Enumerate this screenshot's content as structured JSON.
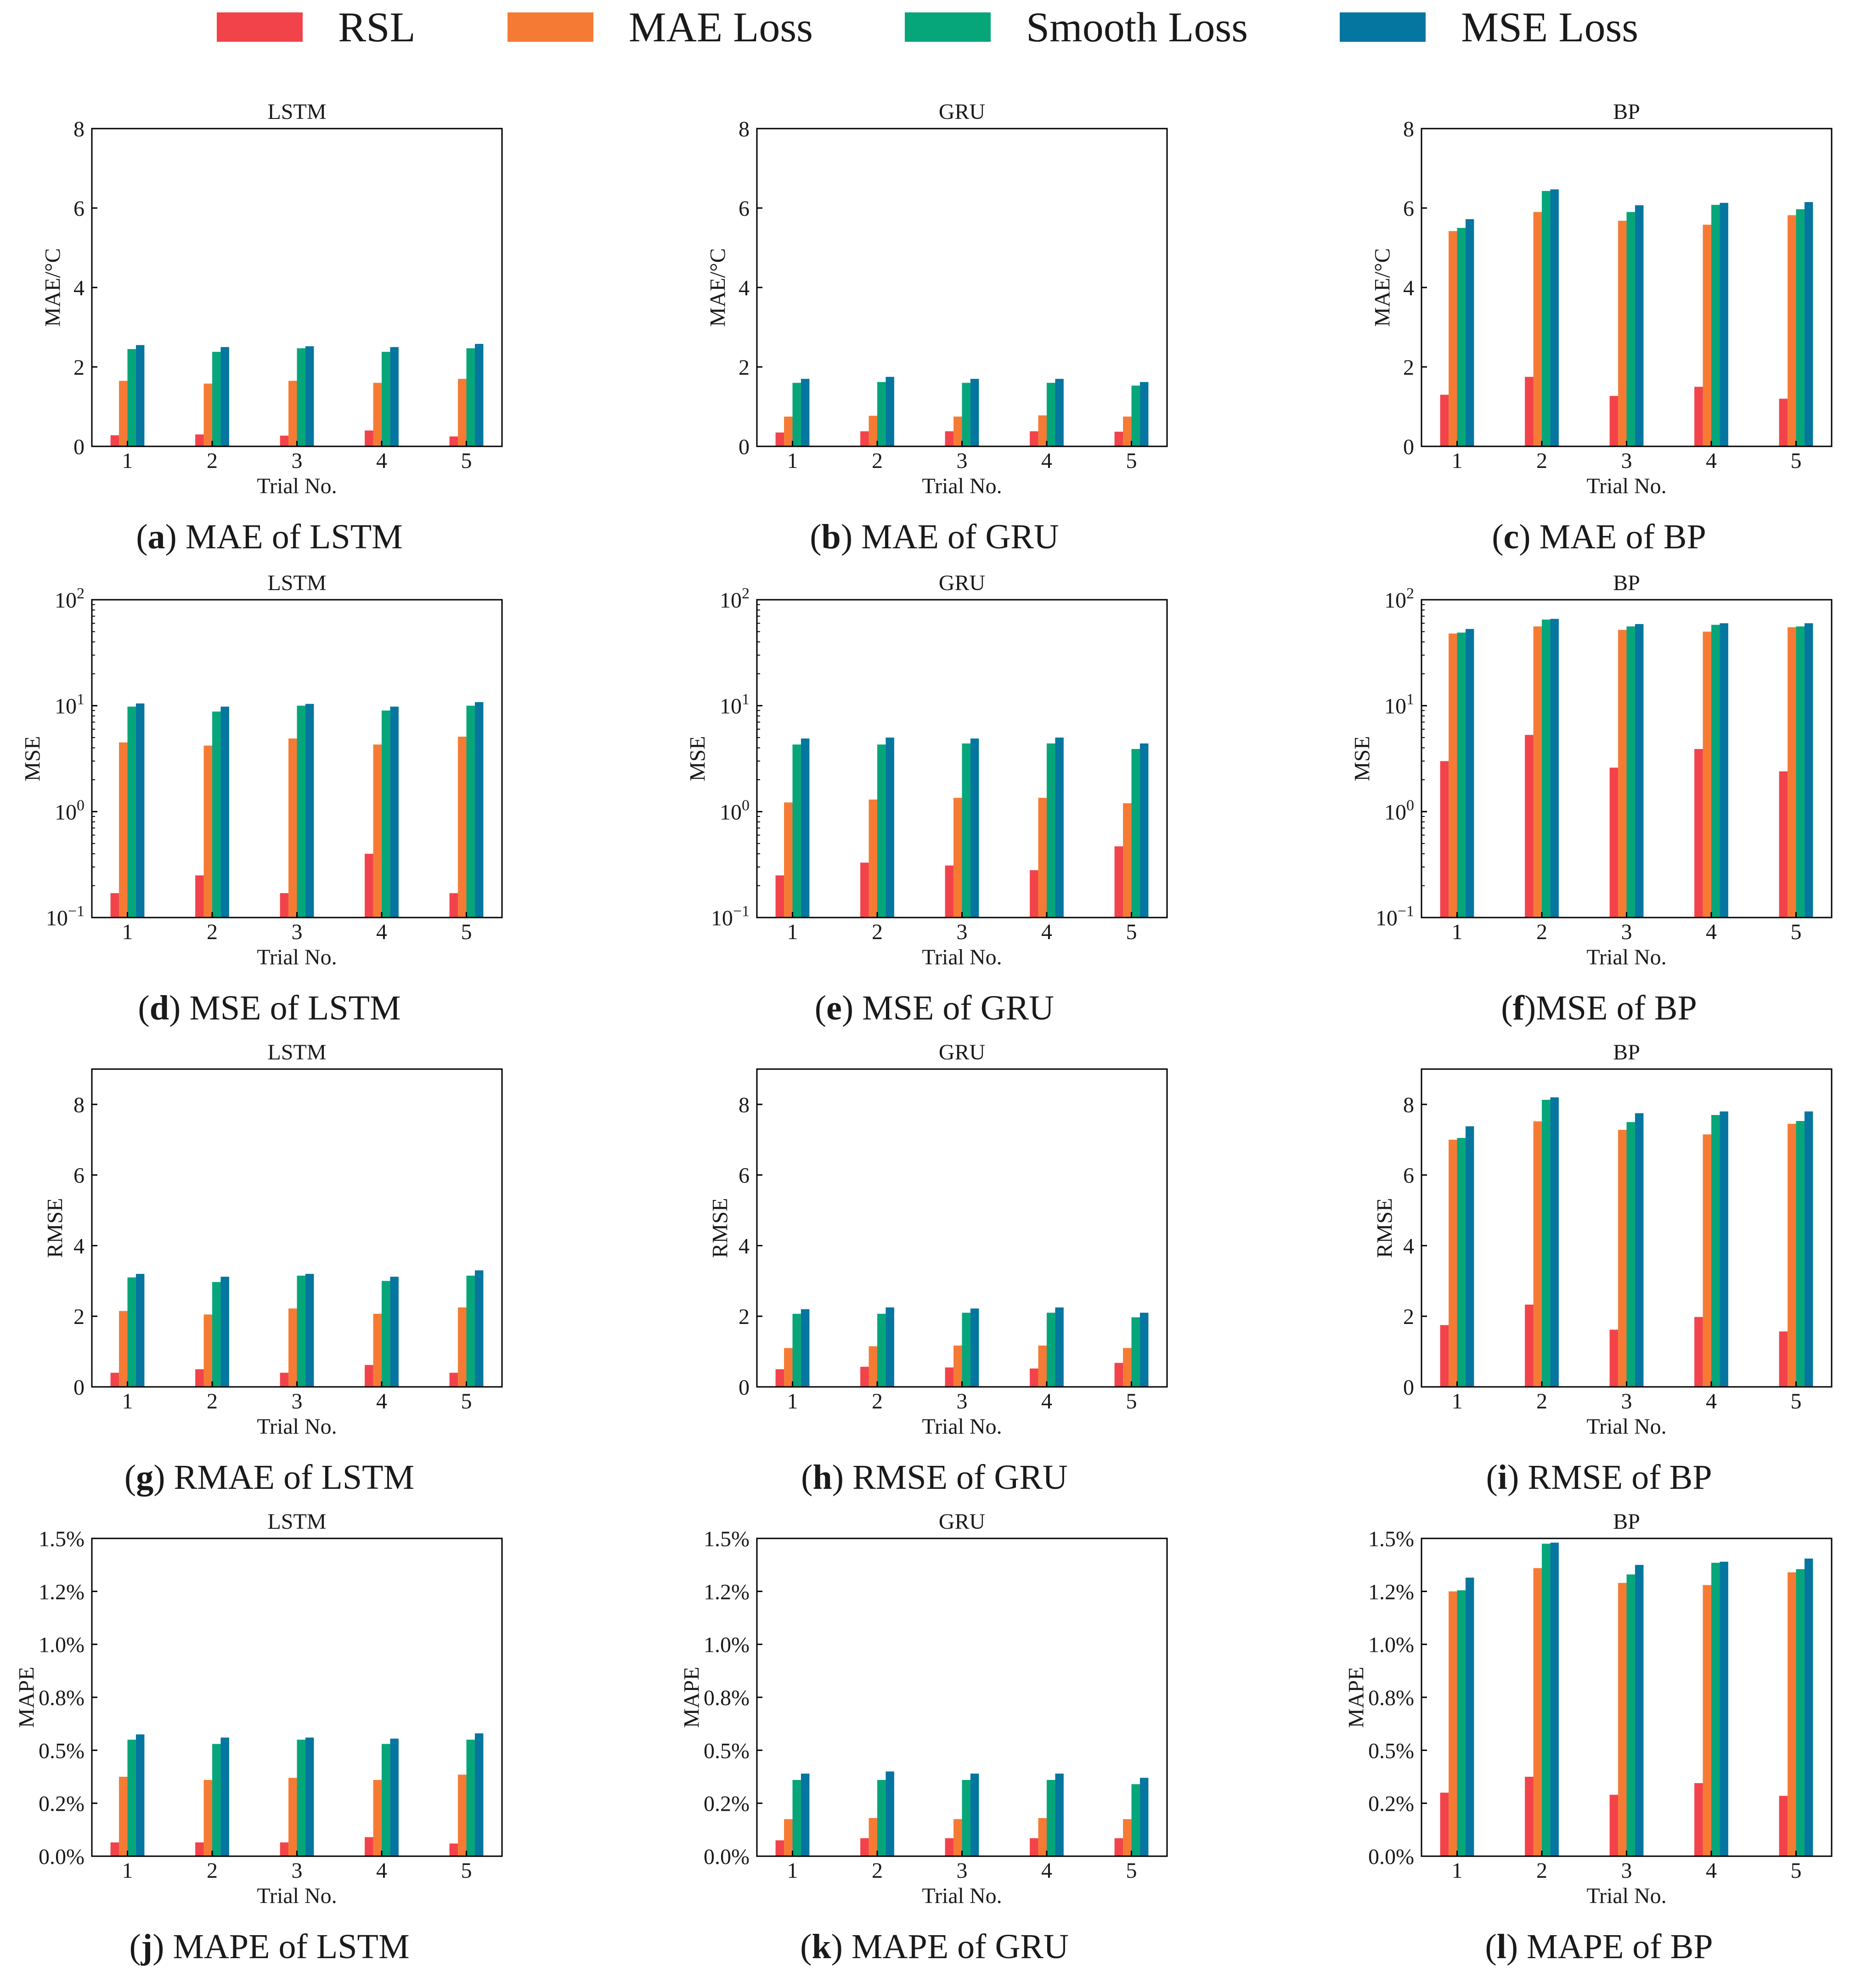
{
  "legend": {
    "items": [
      {
        "label": "RSL",
        "color": "#F2434B"
      },
      {
        "label": "MAE Loss",
        "color": "#F57B35"
      },
      {
        "label": "Smooth Loss",
        "color": "#06A67A"
      },
      {
        "label": "MSE Loss",
        "color": "#05769F"
      }
    ]
  },
  "chart_data": [
    {
      "type": "bar",
      "title": "LSTM",
      "xlabel": "Trial No.",
      "ylabel": "MAE/°C",
      "categories": [
        "1",
        "2",
        "3",
        "4",
        "5"
      ],
      "series": [
        {
          "name": "RSL",
          "values": [
            0.28,
            0.3,
            0.27,
            0.4,
            0.25
          ]
        },
        {
          "name": "MAE Loss",
          "values": [
            1.65,
            1.58,
            1.65,
            1.6,
            1.7
          ]
        },
        {
          "name": "Smooth Loss",
          "values": [
            2.45,
            2.38,
            2.47,
            2.38,
            2.47
          ]
        },
        {
          "name": "MSE Loss",
          "values": [
            2.55,
            2.5,
            2.52,
            2.5,
            2.58
          ]
        }
      ],
      "yscale": "linear",
      "ylim": [
        0,
        8
      ],
      "yticks": [
        0,
        2,
        4,
        6,
        8
      ],
      "ytick_labels": [
        "0",
        "2",
        "4",
        "6",
        "8"
      ],
      "caption": {
        "letter": "a",
        "text": " MAE of LSTM"
      }
    },
    {
      "type": "bar",
      "title": "GRU",
      "xlabel": "Trial No.",
      "ylabel": "MAE/°C",
      "categories": [
        "1",
        "2",
        "3",
        "4",
        "5"
      ],
      "series": [
        {
          "name": "RSL",
          "values": [
            0.35,
            0.38,
            0.38,
            0.38,
            0.37
          ]
        },
        {
          "name": "MAE Loss",
          "values": [
            0.75,
            0.77,
            0.75,
            0.78,
            0.75
          ]
        },
        {
          "name": "Smooth Loss",
          "values": [
            1.6,
            1.62,
            1.6,
            1.6,
            1.53
          ]
        },
        {
          "name": "MSE Loss",
          "values": [
            1.7,
            1.75,
            1.7,
            1.7,
            1.62
          ]
        }
      ],
      "yscale": "linear",
      "ylim": [
        0,
        8
      ],
      "yticks": [
        0,
        2,
        4,
        6,
        8
      ],
      "ytick_labels": [
        "0",
        "2",
        "4",
        "6",
        "8"
      ],
      "caption": {
        "letter": "b",
        "text": " MAE of GRU"
      }
    },
    {
      "type": "bar",
      "title": "BP",
      "xlabel": "Trial No.",
      "ylabel": "MAE/°C",
      "categories": [
        "1",
        "2",
        "3",
        "4",
        "5"
      ],
      "series": [
        {
          "name": "RSL",
          "values": [
            1.3,
            1.75,
            1.27,
            1.5,
            1.2
          ]
        },
        {
          "name": "MAE Loss",
          "values": [
            5.42,
            5.9,
            5.68,
            5.58,
            5.82
          ]
        },
        {
          "name": "Smooth Loss",
          "values": [
            5.5,
            6.43,
            5.9,
            6.08,
            5.97
          ]
        },
        {
          "name": "MSE Loss",
          "values": [
            5.72,
            6.47,
            6.07,
            6.13,
            6.15
          ]
        }
      ],
      "yscale": "linear",
      "ylim": [
        0,
        8
      ],
      "yticks": [
        0,
        2,
        4,
        6,
        8
      ],
      "ytick_labels": [
        "0",
        "2",
        "4",
        "6",
        "8"
      ],
      "caption": {
        "letter": "c",
        "text": " MAE of BP"
      }
    },
    {
      "type": "bar",
      "title": "LSTM",
      "xlabel": "Trial No.",
      "ylabel": "MSE",
      "categories": [
        "1",
        "2",
        "3",
        "4",
        "5"
      ],
      "series": [
        {
          "name": "RSL",
          "values": [
            0.17,
            0.25,
            0.17,
            0.4,
            0.17
          ]
        },
        {
          "name": "MAE Loss",
          "values": [
            4.5,
            4.2,
            4.9,
            4.3,
            5.1
          ]
        },
        {
          "name": "Smooth Loss",
          "values": [
            9.8,
            8.8,
            10.0,
            9.0,
            10.0
          ]
        },
        {
          "name": "MSE Loss",
          "values": [
            10.5,
            9.8,
            10.4,
            9.8,
            10.8
          ]
        }
      ],
      "yscale": "log",
      "ylim": [
        0.1,
        100
      ],
      "yticks": [
        0.1,
        1,
        10,
        100
      ],
      "ytick_labels": [
        {
          "base": "10",
          "exp": "−1"
        },
        {
          "base": "10",
          "exp": "0"
        },
        {
          "base": "10",
          "exp": "1"
        },
        {
          "base": "10",
          "exp": "2"
        }
      ],
      "caption": {
        "letter": "d",
        "text": " MSE of LSTM"
      }
    },
    {
      "type": "bar",
      "title": "GRU",
      "xlabel": "Trial No.",
      "ylabel": "MSE",
      "categories": [
        "1",
        "2",
        "3",
        "4",
        "5"
      ],
      "series": [
        {
          "name": "RSL",
          "values": [
            0.25,
            0.33,
            0.31,
            0.28,
            0.47
          ]
        },
        {
          "name": "MAE Loss",
          "values": [
            1.22,
            1.3,
            1.35,
            1.35,
            1.2
          ]
        },
        {
          "name": "Smooth Loss",
          "values": [
            4.3,
            4.3,
            4.4,
            4.4,
            3.9
          ]
        },
        {
          "name": "MSE Loss",
          "values": [
            4.9,
            5.0,
            4.9,
            5.0,
            4.4
          ]
        }
      ],
      "yscale": "log",
      "ylim": [
        0.1,
        100
      ],
      "yticks": [
        0.1,
        1,
        10,
        100
      ],
      "ytick_labels": [
        {
          "base": "10",
          "exp": "−1"
        },
        {
          "base": "10",
          "exp": "0"
        },
        {
          "base": "10",
          "exp": "1"
        },
        {
          "base": "10",
          "exp": "2"
        }
      ],
      "caption": {
        "letter": "e",
        "text": " MSE of GRU"
      }
    },
    {
      "type": "bar",
      "title": "BP",
      "xlabel": "Trial No.",
      "ylabel": "MSE",
      "categories": [
        "1",
        "2",
        "3",
        "4",
        "5"
      ],
      "series": [
        {
          "name": "RSL",
          "values": [
            3.0,
            5.3,
            2.6,
            3.9,
            2.4
          ]
        },
        {
          "name": "MAE Loss",
          "values": [
            48,
            56,
            52,
            50,
            55
          ]
        },
        {
          "name": "Smooth Loss",
          "values": [
            49,
            65,
            56,
            58,
            56
          ]
        },
        {
          "name": "MSE Loss",
          "values": [
            53,
            66,
            59,
            60,
            60
          ]
        }
      ],
      "yscale": "log",
      "ylim": [
        0.1,
        100
      ],
      "yticks": [
        0.1,
        1,
        10,
        100
      ],
      "ytick_labels": [
        {
          "base": "10",
          "exp": "−1"
        },
        {
          "base": "10",
          "exp": "0"
        },
        {
          "base": "10",
          "exp": "1"
        },
        {
          "base": "10",
          "exp": "2"
        }
      ],
      "caption": {
        "letter": "f",
        "text": "MSE of BP"
      }
    },
    {
      "type": "bar",
      "title": "LSTM",
      "xlabel": "Trial No.",
      "ylabel": "RMSE",
      "categories": [
        "1",
        "2",
        "3",
        "4",
        "5"
      ],
      "series": [
        {
          "name": "RSL",
          "values": [
            0.4,
            0.5,
            0.4,
            0.62,
            0.4
          ]
        },
        {
          "name": "MAE Loss",
          "values": [
            2.15,
            2.05,
            2.22,
            2.07,
            2.25
          ]
        },
        {
          "name": "Smooth Loss",
          "values": [
            3.1,
            2.97,
            3.15,
            3.0,
            3.15
          ]
        },
        {
          "name": "MSE Loss",
          "values": [
            3.2,
            3.12,
            3.2,
            3.12,
            3.3
          ]
        }
      ],
      "yscale": "linear",
      "ylim": [
        0,
        9
      ],
      "yticks": [
        0,
        2,
        4,
        6,
        8
      ],
      "ytick_labels": [
        "0",
        "2",
        "4",
        "6",
        "8"
      ],
      "caption": {
        "letter": "g",
        "text": " RMAE of LSTM"
      }
    },
    {
      "type": "bar",
      "title": "GRU",
      "xlabel": "Trial No.",
      "ylabel": "RMSE",
      "categories": [
        "1",
        "2",
        "3",
        "4",
        "5"
      ],
      "series": [
        {
          "name": "RSL",
          "values": [
            0.5,
            0.57,
            0.55,
            0.52,
            0.68
          ]
        },
        {
          "name": "MAE Loss",
          "values": [
            1.1,
            1.15,
            1.17,
            1.17,
            1.1
          ]
        },
        {
          "name": "Smooth Loss",
          "values": [
            2.07,
            2.07,
            2.1,
            2.1,
            1.97
          ]
        },
        {
          "name": "MSE Loss",
          "values": [
            2.2,
            2.25,
            2.22,
            2.25,
            2.1
          ]
        }
      ],
      "yscale": "linear",
      "ylim": [
        0,
        9
      ],
      "yticks": [
        0,
        2,
        4,
        6,
        8
      ],
      "ytick_labels": [
        "0",
        "2",
        "4",
        "6",
        "8"
      ],
      "caption": {
        "letter": "h",
        "text": " RMSE of GRU"
      }
    },
    {
      "type": "bar",
      "title": "BP",
      "xlabel": "Trial No.",
      "ylabel": "RMSE",
      "categories": [
        "1",
        "2",
        "3",
        "4",
        "5"
      ],
      "series": [
        {
          "name": "RSL",
          "values": [
            1.75,
            2.33,
            1.62,
            1.98,
            1.57
          ]
        },
        {
          "name": "MAE Loss",
          "values": [
            7.0,
            7.52,
            7.28,
            7.15,
            7.45
          ]
        },
        {
          "name": "Smooth Loss",
          "values": [
            7.05,
            8.13,
            7.5,
            7.7,
            7.53
          ]
        },
        {
          "name": "MSE Loss",
          "values": [
            7.38,
            8.2,
            7.75,
            7.8,
            7.8
          ]
        }
      ],
      "yscale": "linear",
      "ylim": [
        0,
        9
      ],
      "yticks": [
        0,
        2,
        4,
        6,
        8
      ],
      "ytick_labels": [
        "0",
        "2",
        "4",
        "6",
        "8"
      ],
      "caption": {
        "letter": "i",
        "text": " RMSE of BP"
      }
    },
    {
      "type": "bar",
      "title": "LSTM",
      "xlabel": "Trial No.",
      "ylabel": "MAPE",
      "categories": [
        "1",
        "2",
        "3",
        "4",
        "5"
      ],
      "series": [
        {
          "name": "RSL",
          "values": [
            0.065,
            0.065,
            0.065,
            0.09,
            0.06
          ]
        },
        {
          "name": "MAE Loss",
          "values": [
            0.375,
            0.36,
            0.37,
            0.36,
            0.385
          ]
        },
        {
          "name": "Smooth Loss",
          "values": [
            0.55,
            0.53,
            0.55,
            0.53,
            0.55
          ]
        },
        {
          "name": "MSE Loss",
          "values": [
            0.575,
            0.56,
            0.56,
            0.555,
            0.58
          ]
        }
      ],
      "yscale": "linear",
      "ylim": [
        0,
        1.5
      ],
      "yticks": [
        0,
        0.25,
        0.5,
        0.75,
        1.0,
        1.25,
        1.5
      ],
      "ytick_labels": [
        "0.0%",
        "0.2%",
        "0.5%",
        "0.8%",
        "1.0%",
        "1.2%",
        "1.5%"
      ],
      "caption": {
        "letter": "j",
        "text": " MAPE of LSTM"
      }
    },
    {
      "type": "bar",
      "title": "GRU",
      "xlabel": "Trial No.",
      "ylabel": "MAPE",
      "categories": [
        "1",
        "2",
        "3",
        "4",
        "5"
      ],
      "series": [
        {
          "name": "RSL",
          "values": [
            0.075,
            0.085,
            0.085,
            0.085,
            0.085
          ]
        },
        {
          "name": "MAE Loss",
          "values": [
            0.175,
            0.18,
            0.175,
            0.18,
            0.175
          ]
        },
        {
          "name": "Smooth Loss",
          "values": [
            0.36,
            0.36,
            0.36,
            0.36,
            0.34
          ]
        },
        {
          "name": "MSE Loss",
          "values": [
            0.39,
            0.4,
            0.39,
            0.39,
            0.37
          ]
        }
      ],
      "yscale": "linear",
      "ylim": [
        0,
        1.5
      ],
      "yticks": [
        0,
        0.25,
        0.5,
        0.75,
        1.0,
        1.25,
        1.5
      ],
      "ytick_labels": [
        "0.0%",
        "0.2%",
        "0.5%",
        "0.8%",
        "1.0%",
        "1.2%",
        "1.5%"
      ],
      "caption": {
        "letter": "k",
        "text": " MAPE of GRU"
      }
    },
    {
      "type": "bar",
      "title": "BP",
      "xlabel": "Trial No.",
      "ylabel": "MAPE",
      "categories": [
        "1",
        "2",
        "3",
        "4",
        "5"
      ],
      "series": [
        {
          "name": "RSL",
          "values": [
            0.3,
            0.375,
            0.29,
            0.345,
            0.285
          ]
        },
        {
          "name": "MAE Loss",
          "values": [
            1.25,
            1.36,
            1.29,
            1.28,
            1.34
          ]
        },
        {
          "name": "Smooth Loss",
          "values": [
            1.255,
            1.475,
            1.33,
            1.385,
            1.355
          ]
        },
        {
          "name": "MSE Loss",
          "values": [
            1.315,
            1.48,
            1.375,
            1.39,
            1.405
          ]
        }
      ],
      "yscale": "linear",
      "ylim": [
        0,
        1.5
      ],
      "yticks": [
        0,
        0.25,
        0.5,
        0.75,
        1.0,
        1.25,
        1.5
      ],
      "ytick_labels": [
        "0.0%",
        "0.2%",
        "0.5%",
        "0.8%",
        "1.0%",
        "1.2%",
        "1.5%"
      ],
      "caption": {
        "letter": "l",
        "text": " MAPE of BP"
      }
    }
  ]
}
